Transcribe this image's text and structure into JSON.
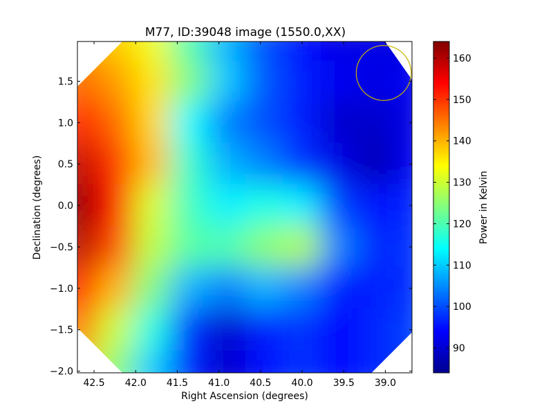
{
  "chart_data": {
    "type": "heatmap",
    "title": "M77, ID:39048 image (1550.0,XX)",
    "xlabel": "Right Ascension (degrees)",
    "ylabel": "Declination (degrees)",
    "xlim": [
      42.7,
      38.68
    ],
    "ylim": [
      -2.02,
      1.98
    ],
    "x_ticks": [
      42.5,
      42.0,
      41.5,
      41.0,
      40.5,
      40.0,
      39.5,
      39.0
    ],
    "x_tick_labels": [
      "42.5",
      "42.0",
      "41.5",
      "41.0",
      "40.5",
      "40.0",
      "39.5",
      "39.0"
    ],
    "y_ticks": [
      1.5,
      1.0,
      0.5,
      0.0,
      -0.5,
      -1.0,
      -1.5,
      -2.0
    ],
    "y_tick_labels": [
      "1.5",
      "1.0",
      "0.5",
      "0.0",
      "−0.5",
      "−1.0",
      "−1.5",
      "−2.0"
    ],
    "colormap": "jet",
    "colorbar": {
      "label": "Power in Kelvin",
      "range": [
        84,
        164
      ],
      "ticks": [
        90,
        100,
        110,
        120,
        130,
        140,
        150,
        160
      ],
      "tick_labels": [
        "90",
        "100",
        "110",
        "120",
        "130",
        "140",
        "150",
        "160"
      ]
    },
    "grid_x": [
      42.7,
      42.25,
      41.8,
      41.35,
      40.9,
      40.45,
      40.0,
      39.55,
      39.1,
      38.68
    ],
    "grid_y": [
      1.98,
      1.5,
      1.0,
      0.5,
      0.0,
      -0.5,
      -1.0,
      -1.5,
      -2.02
    ],
    "values": [
      [
        141,
        138,
        133,
        120,
        108,
        100,
        95,
        92,
        92,
        91
      ],
      [
        146,
        142,
        136,
        124,
        110,
        101,
        96,
        93,
        92,
        93
      ],
      [
        152,
        146,
        137,
        114,
        104,
        100,
        96,
        90,
        90,
        92
      ],
      [
        159,
        150,
        139,
        118,
        108,
        104,
        98,
        92,
        88,
        93
      ],
      [
        163,
        153,
        131,
        119,
        113,
        116,
        113,
        99,
        95,
        97
      ],
      [
        160,
        148,
        129,
        121,
        120,
        125,
        128,
        104,
        97,
        98
      ],
      [
        154,
        140,
        124,
        108,
        104,
        108,
        104,
        96,
        96,
        98
      ],
      [
        145,
        130,
        116,
        98,
        90,
        96,
        98,
        94,
        97,
        99
      ],
      [
        138,
        125,
        110,
        96,
        90,
        95,
        98,
        94,
        97,
        99
      ]
    ],
    "beam_circle": {
      "ra": 39.02,
      "dec": 1.6,
      "radius_deg": 0.33,
      "color": "#c8b400"
    },
    "mask": "octagon",
    "grid": false,
    "legend": "none"
  }
}
